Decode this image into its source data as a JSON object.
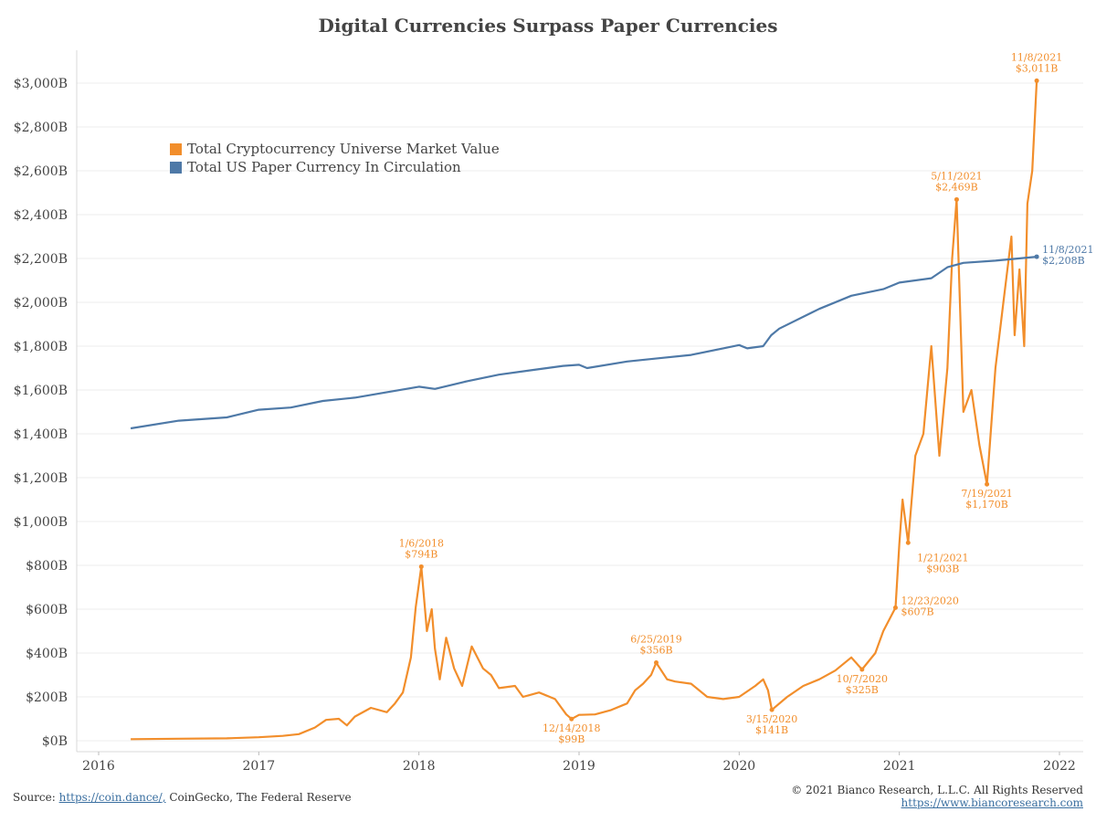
{
  "chart_data": {
    "type": "line",
    "title": "Digital Currencies Surpass Paper Currencies",
    "ylim": [
      0,
      3100
    ],
    "y_ticks": [
      {
        "value": 0,
        "label": "$0B"
      },
      {
        "value": 200,
        "label": "$200B"
      },
      {
        "value": 400,
        "label": "$400B"
      },
      {
        "value": 600,
        "label": "$600B"
      },
      {
        "value": 800,
        "label": "$800B"
      },
      {
        "value": 1000,
        "label": "$1,000B"
      },
      {
        "value": 1200,
        "label": "$1,200B"
      },
      {
        "value": 1400,
        "label": "$1,400B"
      },
      {
        "value": 1600,
        "label": "$1,600B"
      },
      {
        "value": 1800,
        "label": "$1,800B"
      },
      {
        "value": 2000,
        "label": "$2,000B"
      },
      {
        "value": 2200,
        "label": "$2,200B"
      },
      {
        "value": 2400,
        "label": "$2,400B"
      },
      {
        "value": 2600,
        "label": "$2,600B"
      },
      {
        "value": 2800,
        "label": "$2,800B"
      },
      {
        "value": 3000,
        "label": "$3,000B"
      }
    ],
    "x_ticks": [
      {
        "value": 2016,
        "label": "2016"
      },
      {
        "value": 2017,
        "label": "2017"
      },
      {
        "value": 2018,
        "label": "2018"
      },
      {
        "value": 2019,
        "label": "2019"
      },
      {
        "value": 2020,
        "label": "2020"
      },
      {
        "value": 2021,
        "label": "2021"
      },
      {
        "value": 2022,
        "label": "2022"
      }
    ],
    "xlim": [
      2015.95,
      2022.15
    ],
    "grid": "horizontal",
    "legend_position": "top-left",
    "series": [
      {
        "name": "Total Cryptocurrency Universe Market Value",
        "color": "#f28e2b",
        "points": [
          [
            2016.2,
            7
          ],
          [
            2016.5,
            9
          ],
          [
            2016.8,
            11
          ],
          [
            2017.0,
            16
          ],
          [
            2017.15,
            22
          ],
          [
            2017.25,
            30
          ],
          [
            2017.35,
            60
          ],
          [
            2017.42,
            95
          ],
          [
            2017.5,
            100
          ],
          [
            2017.55,
            70
          ],
          [
            2017.6,
            110
          ],
          [
            2017.7,
            150
          ],
          [
            2017.8,
            130
          ],
          [
            2017.85,
            170
          ],
          [
            2017.9,
            220
          ],
          [
            2017.95,
            380
          ],
          [
            2017.98,
            610
          ],
          [
            2018.015,
            794
          ],
          [
            2018.05,
            500
          ],
          [
            2018.08,
            600
          ],
          [
            2018.1,
            420
          ],
          [
            2018.13,
            280
          ],
          [
            2018.17,
            470
          ],
          [
            2018.22,
            330
          ],
          [
            2018.27,
            250
          ],
          [
            2018.33,
            430
          ],
          [
            2018.4,
            330
          ],
          [
            2018.45,
            300
          ],
          [
            2018.5,
            240
          ],
          [
            2018.6,
            250
          ],
          [
            2018.65,
            200
          ],
          [
            2018.75,
            220
          ],
          [
            2018.85,
            190
          ],
          [
            2018.92,
            120
          ],
          [
            2018.953,
            99
          ],
          [
            2019.0,
            118
          ],
          [
            2019.1,
            120
          ],
          [
            2019.2,
            140
          ],
          [
            2019.3,
            170
          ],
          [
            2019.35,
            230
          ],
          [
            2019.4,
            260
          ],
          [
            2019.45,
            300
          ],
          [
            2019.482,
            356
          ],
          [
            2019.55,
            280
          ],
          [
            2019.6,
            270
          ],
          [
            2019.7,
            260
          ],
          [
            2019.8,
            200
          ],
          [
            2019.9,
            190
          ],
          [
            2020.0,
            200
          ],
          [
            2020.1,
            250
          ],
          [
            2020.15,
            280
          ],
          [
            2020.18,
            230
          ],
          [
            2020.204,
            141
          ],
          [
            2020.3,
            200
          ],
          [
            2020.4,
            250
          ],
          [
            2020.5,
            280
          ],
          [
            2020.6,
            320
          ],
          [
            2020.7,
            380
          ],
          [
            2020.767,
            325
          ],
          [
            2020.85,
            400
          ],
          [
            2020.9,
            500
          ],
          [
            2020.976,
            607
          ],
          [
            2021.0,
            900
          ],
          [
            2021.02,
            1100
          ],
          [
            2021.055,
            903
          ],
          [
            2021.1,
            1300
          ],
          [
            2021.15,
            1400
          ],
          [
            2021.2,
            1800
          ],
          [
            2021.25,
            1300
          ],
          [
            2021.3,
            1700
          ],
          [
            2021.33,
            2200
          ],
          [
            2021.358,
            2469
          ],
          [
            2021.4,
            1500
          ],
          [
            2021.45,
            1600
          ],
          [
            2021.5,
            1350
          ],
          [
            2021.547,
            1170
          ],
          [
            2021.6,
            1700
          ],
          [
            2021.65,
            2000
          ],
          [
            2021.7,
            2300
          ],
          [
            2021.72,
            1850
          ],
          [
            2021.75,
            2150
          ],
          [
            2021.78,
            1800
          ],
          [
            2021.8,
            2450
          ],
          [
            2021.83,
            2600
          ],
          [
            2021.858,
            3011
          ]
        ]
      },
      {
        "name": "Total US Paper Currency In Circulation",
        "color": "#4e79a7",
        "points": [
          [
            2016.2,
            1425
          ],
          [
            2016.5,
            1460
          ],
          [
            2016.8,
            1475
          ],
          [
            2017.0,
            1510
          ],
          [
            2017.2,
            1520
          ],
          [
            2017.4,
            1550
          ],
          [
            2017.6,
            1565
          ],
          [
            2017.8,
            1590
          ],
          [
            2018.0,
            1615
          ],
          [
            2018.1,
            1605
          ],
          [
            2018.3,
            1640
          ],
          [
            2018.5,
            1670
          ],
          [
            2018.7,
            1690
          ],
          [
            2018.9,
            1710
          ],
          [
            2019.0,
            1715
          ],
          [
            2019.05,
            1700
          ],
          [
            2019.3,
            1730
          ],
          [
            2019.5,
            1745
          ],
          [
            2019.7,
            1760
          ],
          [
            2019.9,
            1790
          ],
          [
            2020.0,
            1805
          ],
          [
            2020.05,
            1790
          ],
          [
            2020.15,
            1800
          ],
          [
            2020.2,
            1850
          ],
          [
            2020.25,
            1880
          ],
          [
            2020.5,
            1970
          ],
          [
            2020.7,
            2030
          ],
          [
            2020.9,
            2060
          ],
          [
            2021.0,
            2090
          ],
          [
            2021.2,
            2110
          ],
          [
            2021.3,
            2160
          ],
          [
            2021.4,
            2180
          ],
          [
            2021.6,
            2190
          ],
          [
            2021.858,
            2208
          ]
        ]
      }
    ],
    "annotations": [
      {
        "date": "1/6/2018",
        "value": "$794B",
        "x": 2018.015,
        "y": 794,
        "series": 0,
        "place": "above"
      },
      {
        "date": "12/14/2018",
        "value": "$99B",
        "x": 2018.953,
        "y": 99,
        "series": 0,
        "place": "below"
      },
      {
        "date": "6/25/2019",
        "value": "$356B",
        "x": 2019.482,
        "y": 356,
        "series": 0,
        "place": "above"
      },
      {
        "date": "3/15/2020",
        "value": "$141B",
        "x": 2020.204,
        "y": 141,
        "series": 0,
        "place": "below"
      },
      {
        "date": "10/7/2020",
        "value": "$325B",
        "x": 2020.767,
        "y": 325,
        "series": 0,
        "place": "below"
      },
      {
        "date": "12/23/2020",
        "value": "$607B",
        "x": 2020.976,
        "y": 607,
        "series": 0,
        "place": "right"
      },
      {
        "date": "1/21/2021",
        "value": "$903B",
        "x": 2021.055,
        "y": 903,
        "series": 0,
        "place": "below-right"
      },
      {
        "date": "5/11/2021",
        "value": "$2,469B",
        "x": 2021.358,
        "y": 2469,
        "series": 0,
        "place": "above"
      },
      {
        "date": "7/19/2021",
        "value": "$1,170B",
        "x": 2021.547,
        "y": 1170,
        "series": 0,
        "place": "below"
      },
      {
        "date": "11/8/2021",
        "value": "$3,011B",
        "x": 2021.858,
        "y": 3011,
        "series": 0,
        "place": "above"
      },
      {
        "date": "11/8/2021",
        "value": "$2,208B",
        "x": 2021.858,
        "y": 2208,
        "series": 1,
        "place": "right"
      }
    ]
  },
  "legend": {
    "crypto_label": "Total Cryptocurrency Universe Market Value",
    "crypto_color": "#f28e2b",
    "paper_label": "Total US Paper Currency In Circulation",
    "paper_color": "#4e79a7"
  },
  "footer": {
    "source_prefix": "Source: ",
    "source_link": "https://coin.dance/,",
    "source_rest": " CoinGecko, The Federal Reserve",
    "copyright": "© 2021 Bianco Research, L.L.C. All Rights Reserved",
    "website": "https://www.biancoresearch.com"
  }
}
